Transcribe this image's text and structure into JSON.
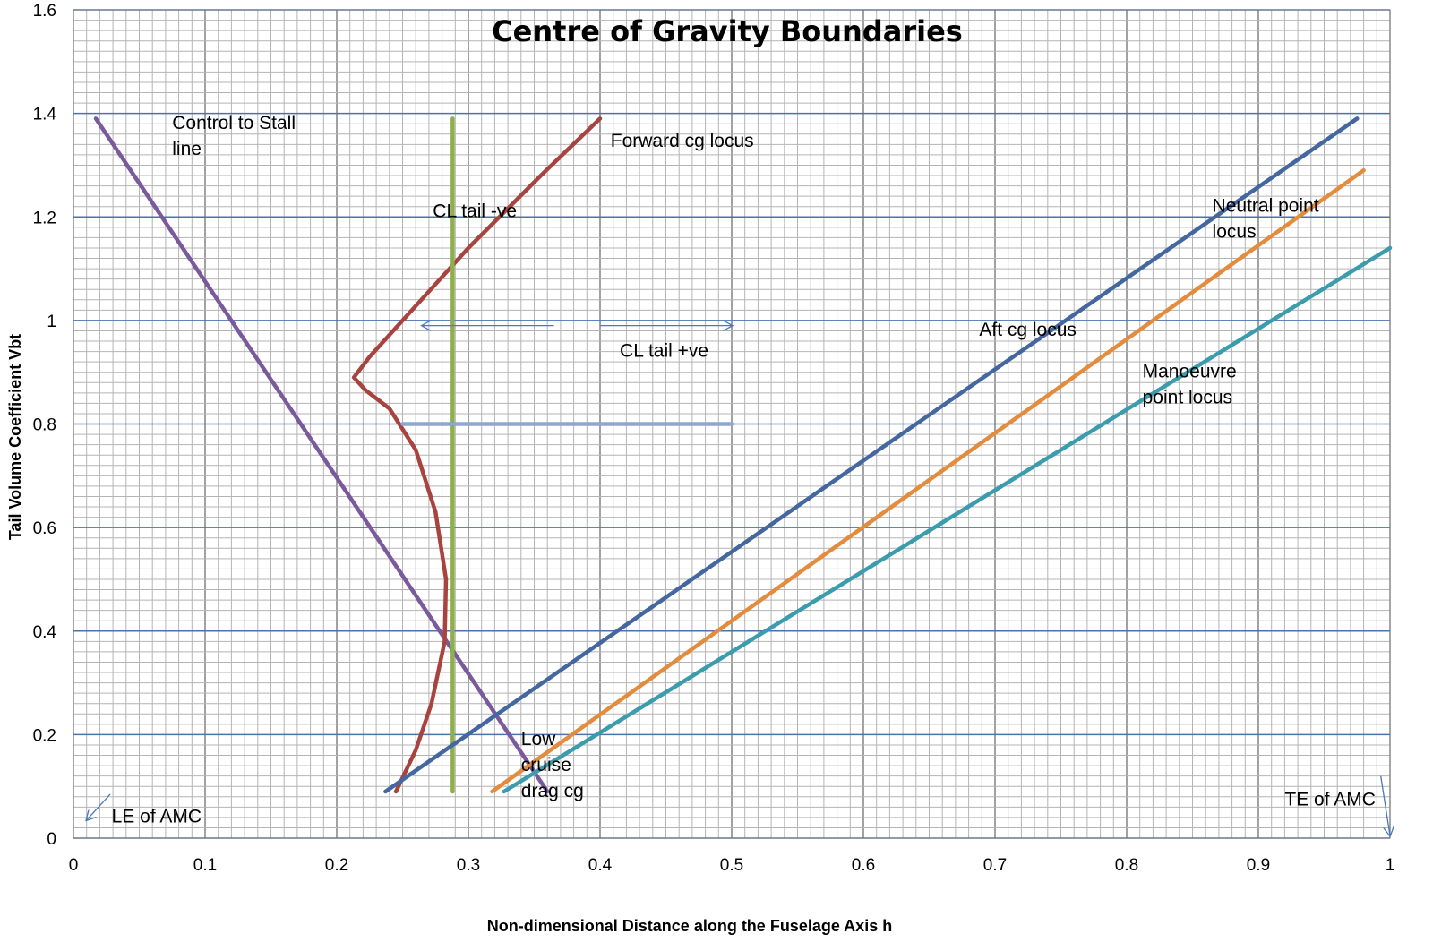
{
  "chart_data": {
    "type": "line",
    "title": "Centre of Gravity Boundaries",
    "xlabel": "Non-dimensional  Distance along the Fuselage Axis h",
    "ylabel": "Tail Volume Coefficient Vbt",
    "xlim": [
      0,
      1
    ],
    "ylim": [
      0,
      1.6
    ],
    "x_ticks": [
      "0",
      "0.1",
      "0.2",
      "0.3",
      "0.4",
      "0.5",
      "0.6",
      "0.7",
      "0.8",
      "0.9",
      "1"
    ],
    "y_ticks": [
      "0",
      "0.2",
      "0.4",
      "0.6",
      "0.8",
      "1",
      "1.2",
      "1.4",
      "1.6"
    ],
    "grid": true,
    "legend": "none",
    "series": [
      {
        "color": "#7a5a9c",
        "points": [
          [
            0.017,
            1.39
          ],
          [
            0.36,
            0.09
          ]
        ]
      },
      {
        "color": "#a84440",
        "points": [
          [
            0.4,
            1.39
          ],
          [
            0.355,
            1.28
          ],
          [
            0.3,
            1.14
          ],
          [
            0.25,
            1.0
          ],
          [
            0.225,
            0.93
          ],
          [
            0.213,
            0.89
          ],
          [
            0.222,
            0.865
          ],
          [
            0.24,
            0.83
          ],
          [
            0.26,
            0.75
          ],
          [
            0.275,
            0.63
          ],
          [
            0.283,
            0.5
          ],
          [
            0.282,
            0.38
          ],
          [
            0.272,
            0.26
          ],
          [
            0.26,
            0.17
          ],
          [
            0.245,
            0.09
          ]
        ]
      },
      {
        "color": "#8db04a",
        "points": [
          [
            0.288,
            1.39
          ],
          [
            0.288,
            0.09
          ]
        ]
      },
      {
        "color": "#8fa6d0",
        "points": [
          [
            0.25,
            0.8
          ],
          [
            0.5,
            0.8
          ]
        ]
      },
      {
        "color": "#4567a0",
        "points": [
          [
            0.237,
            0.09
          ],
          [
            0.975,
            1.39
          ]
        ]
      },
      {
        "color": "#e38c3e",
        "points": [
          [
            0.318,
            0.09
          ],
          [
            0.98,
            1.29
          ]
        ]
      },
      {
        "color": "#3a9cac",
        "points": [
          [
            0.327,
            0.09
          ],
          [
            1.0,
            1.14
          ]
        ]
      }
    ],
    "annotations": [
      {
        "lines": [
          "Control to Stall",
          "line"
        ],
        "x": 0.075,
        "y": 1.37
      },
      {
        "lines": [
          "Forward cg locus"
        ],
        "x": 0.408,
        "y": 1.335
      },
      {
        "lines": [
          "CL tail -ve"
        ],
        "x": 0.273,
        "y": 1.2
      },
      {
        "lines": [
          "CL tail +ve"
        ],
        "x": 0.415,
        "y": 0.93
      },
      {
        "lines": [
          "Aft cg locus"
        ],
        "x": 0.688,
        "y": 0.97
      },
      {
        "lines": [
          "Neutral point",
          "locus"
        ],
        "x": 0.865,
        "y": 1.21
      },
      {
        "lines": [
          "Manoeuvre",
          "point locus"
        ],
        "x": 0.812,
        "y": 0.89
      },
      {
        "lines": [
          "Low",
          "cruise",
          "drag cg"
        ],
        "x": 0.34,
        "y": 0.18
      },
      {
        "lines": [
          "LE of AMC"
        ],
        "x": 0.029,
        "y": 0.03
      },
      {
        "lines": [
          "TE of AMC"
        ],
        "x": 0.92,
        "y": 0.063
      }
    ],
    "arrows": [
      {
        "from": [
          0.365,
          0.99
        ],
        "to": [
          0.265,
          0.99
        ]
      },
      {
        "from": [
          0.4,
          0.99
        ],
        "to": [
          0.5,
          0.99
        ]
      },
      {
        "from": [
          0.028,
          0.085
        ],
        "to": [
          0.01,
          0.035
        ]
      },
      {
        "from": [
          0.993,
          0.12
        ],
        "to": [
          1.0,
          0.005
        ]
      }
    ]
  }
}
